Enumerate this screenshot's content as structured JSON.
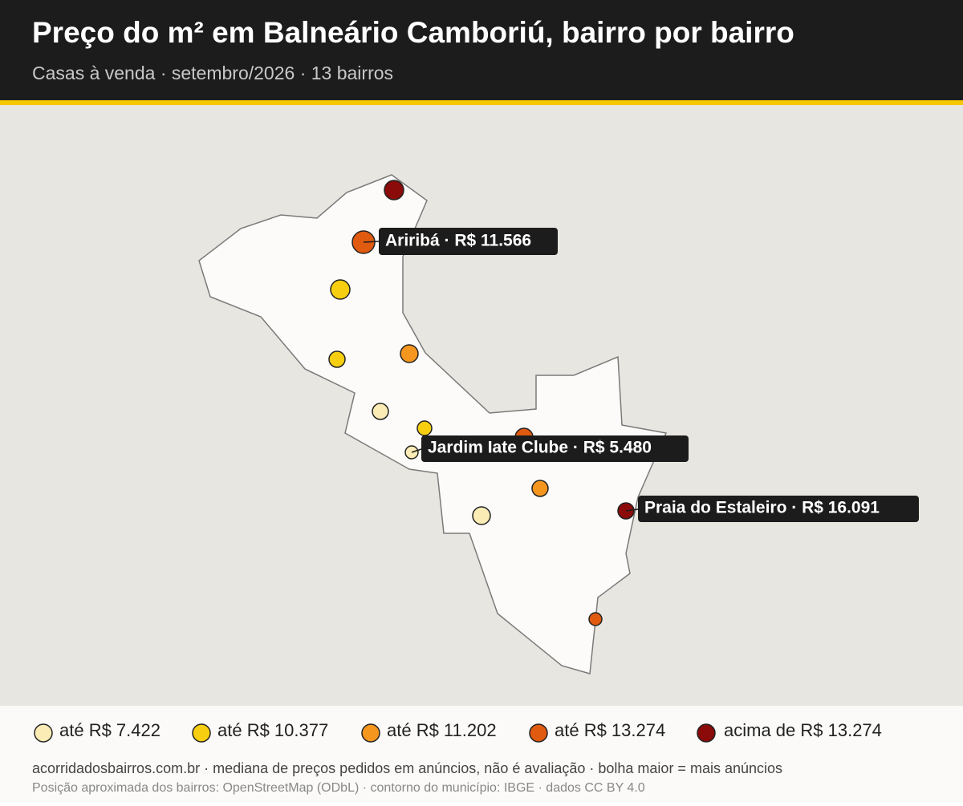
{
  "header": {
    "title": "Preço do m² em Balneário Camboriú, bairro por bairro",
    "subtitle": "Casas à venda · setembro/2026 · 13 bairros"
  },
  "callouts": [
    "Ariribá · R$ 11.566",
    "Jardim Iate Clube · R$ 5.480",
    "Praia do Estaleiro · R$ 16.091"
  ],
  "legend": [
    "até R$ 7.422",
    "até R$ 10.377",
    "até R$ 11.202",
    "até R$ 13.274",
    "acima de R$ 13.274"
  ],
  "footer": [
    "acorridadosbairros.com.br · mediana de preços pedidos em anúncios, não é avaliação · bolha maior = mais anúncios",
    "Posição aproximada dos bairros: OpenStreetMap (ODbL) · contorno do município: IBGE · dados CC BY 4.0"
  ]
}
